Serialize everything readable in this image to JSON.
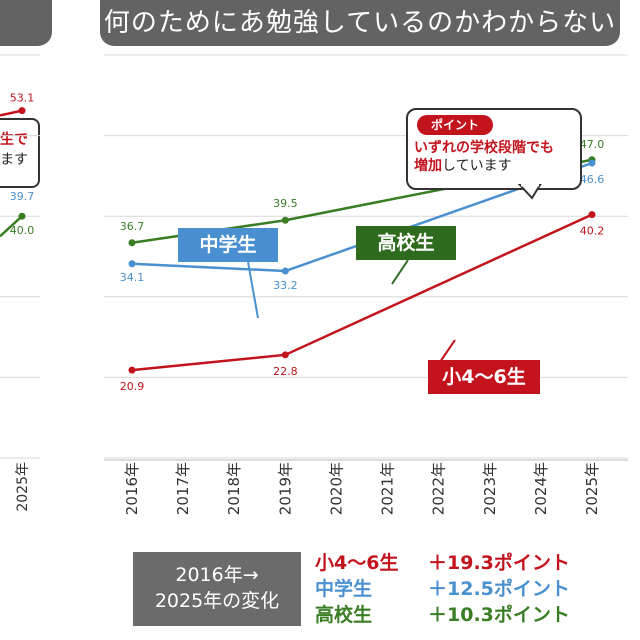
{
  "title": "何のためにあ勉強しているのかわからない",
  "callout": {
    "tag": "ポイント",
    "line1": "いずれの学校段階でも",
    "line2_red": "増加",
    "line2_rest": "しています"
  },
  "left_panel": {
    "callout_line1": "生で",
    "callout_line2": "ます",
    "values": [
      "53.1",
      "39.7",
      "40.0"
    ],
    "xtick": "2025年"
  },
  "chart_data": {
    "type": "line",
    "x": [
      "2016年",
      "2017年",
      "2018年",
      "2019年",
      "2020年",
      "2021年",
      "2022年",
      "2023年",
      "2024年",
      "2025年"
    ],
    "ylim": [
      10,
      60
    ],
    "grid": true,
    "series": [
      {
        "name": "高校生",
        "color": "#3a7d24",
        "points": [
          [
            2016,
            36.7
          ],
          [
            2019,
            39.5
          ],
          [
            2025,
            47.0
          ]
        ]
      },
      {
        "name": "中学生",
        "color": "#4a90d0",
        "points": [
          [
            2016,
            34.1
          ],
          [
            2019,
            33.2
          ],
          [
            2025,
            46.6
          ]
        ]
      },
      {
        "name": "小4～6生",
        "color": "#c3141e",
        "points": [
          [
            2016,
            20.9
          ],
          [
            2019,
            22.8
          ],
          [
            2025,
            40.2
          ]
        ]
      }
    ]
  },
  "summary": {
    "label_line1": "2016年→",
    "label_line2": "2025年の変化",
    "rows": [
      {
        "name": "小4～6生",
        "delta": "＋19.3ポイント",
        "color": "#c3141e"
      },
      {
        "name": "中学生",
        "delta": "＋12.5ポイント",
        "color": "#4a90d0"
      },
      {
        "name": "高校生",
        "delta": "＋10.3ポイント",
        "color": "#3a7d24"
      }
    ]
  }
}
